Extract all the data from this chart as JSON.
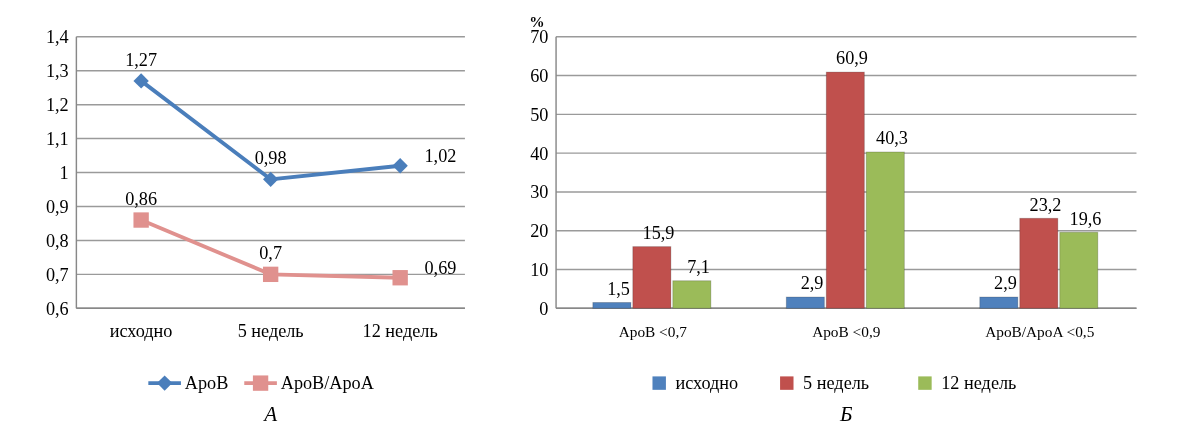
{
  "chart_data": [
    {
      "type": "line",
      "categories": [
        "исходно",
        "5 недель",
        "12 недель"
      ],
      "series": [
        {
          "name": "ApoB",
          "color": "#4a7ebb",
          "marker": "diamond",
          "values": [
            1.27,
            0.98,
            1.02
          ],
          "value_labels": [
            "1,27",
            "0,98",
            "1,02"
          ]
        },
        {
          "name": "ApoB/ApoA",
          "color": "#e0918e",
          "marker": "square",
          "values": [
            0.86,
            0.7,
            0.69
          ],
          "value_labels": [
            "0,86",
            "0,7",
            "0,69"
          ]
        }
      ],
      "ylim": [
        0.6,
        1.4
      ],
      "yticks": [
        {
          "value": 0.6,
          "label": "0,6"
        },
        {
          "value": 0.7,
          "label": "0,7"
        },
        {
          "value": 0.8,
          "label": "0,8"
        },
        {
          "value": 0.9,
          "label": "0,9"
        },
        {
          "value": 1,
          "label": "1"
        },
        {
          "value": 1.1,
          "label": "1,1"
        },
        {
          "value": 1.2,
          "label": "1,2"
        },
        {
          "value": 1.3,
          "label": "1,3"
        },
        {
          "value": 1.4,
          "label": "1,4"
        }
      ],
      "grid": "y",
      "legend": "bottom",
      "line_style": "solid",
      "annotations": [
        "А"
      ]
    },
    {
      "type": "bar",
      "categories": [
        "ApoB <0,7",
        "ApoB <0,9",
        "ApoB/ApoA  <0,5"
      ],
      "series": [
        {
          "name": "исходно",
          "color": "#4f81bd",
          "values": [
            1.5,
            2.9,
            2.9
          ],
          "value_labels": [
            "1,5",
            "2,9",
            "2,9"
          ]
        },
        {
          "name": "5 недель",
          "color": "#c0504d",
          "values": [
            15.9,
            60.9,
            23.2
          ],
          "value_labels": [
            "15,9",
            "60,9",
            "23,2"
          ]
        },
        {
          "name": "12 недель",
          "color": "#9bbb59",
          "values": [
            7.1,
            40.3,
            19.6
          ],
          "value_labels": [
            "7,1",
            "40,3",
            "19,6"
          ]
        }
      ],
      "ylabel": "%",
      "ylim": [
        0,
        70
      ],
      "yticks": [
        0,
        10,
        20,
        30,
        40,
        50,
        60,
        70
      ],
      "grid": "y",
      "legend": "bottom",
      "annotations": [
        "Б"
      ]
    }
  ]
}
